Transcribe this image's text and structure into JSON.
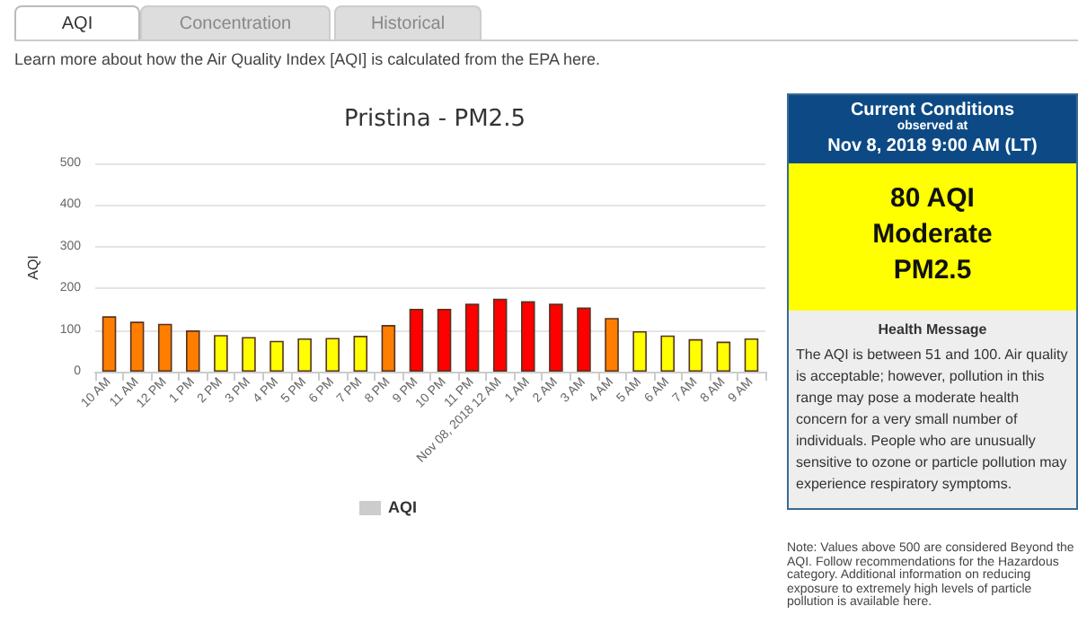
{
  "chart_data": {
    "type": "bar",
    "title": "Pristina - PM2.5",
    "ylabel": "AQI",
    "categories": [
      "10 AM",
      "11 AM",
      "12 PM",
      "1 PM",
      "2 PM",
      "3 PM",
      "4 PM",
      "5 PM",
      "6 PM",
      "7 PM",
      "8 PM",
      "9 PM",
      "10 PM",
      "11 PM",
      "Nov 08, 2018 12 AM",
      "1 AM",
      "2 AM",
      "3 AM",
      "4 AM",
      "5 AM",
      "6 AM",
      "7 AM",
      "8 AM",
      "9 AM"
    ],
    "series": [
      {
        "name": "AQI",
        "color": "#cccccc",
        "values": [
          133,
          120,
          115,
          99,
          88,
          83,
          74,
          80,
          81,
          86,
          112,
          151,
          151,
          163,
          175,
          169,
          163,
          154,
          129,
          97,
          87,
          78,
          72,
          80
        ],
        "colors": [
          "#ff7e00",
          "#ff7e00",
          "#ff7e00",
          "#ff7e00",
          "#ffff00",
          "#ffff00",
          "#ffff00",
          "#ffff00",
          "#ffff00",
          "#ffff00",
          "#ff7e00",
          "#ff0000",
          "#ff0000",
          "#ff0000",
          "#ff0000",
          "#ff0000",
          "#ff0000",
          "#ff0000",
          "#ff7e00",
          "#ffff00",
          "#ffff00",
          "#ffff00",
          "#ffff00",
          "#ffff00"
        ]
      }
    ],
    "ylim": [
      0,
      500
    ],
    "yticks": [
      0,
      100,
      200,
      300,
      400,
      500
    ],
    "grid": "y",
    "legend": "bottom",
    "annotations": [
      "AQI",
      "Concentration",
      "Historical",
      "Learn more about how the Air Quality Index [AQI] is calculated from the EPA here.",
      "Current Conditions",
      "observed at",
      "Nov 8, 2018 9:00 AM (LT)",
      "80 AQI",
      "Moderate",
      "PM2.5",
      "Health Message",
      "The AQI is between 51 and 100. Air quality is acceptable; however, pollution in this range may pose a moderate health concern for a very small number of individuals. People who are unusually sensitive to ozone or particle pollution may experience respiratory symptoms.",
      "Note: Values above 500 are considered Beyond the AQI. Follow recommendations for the Hazardous category. Additional information on reducing exposure to extremely high levels of particle pollution is available here."
    ]
  }
}
